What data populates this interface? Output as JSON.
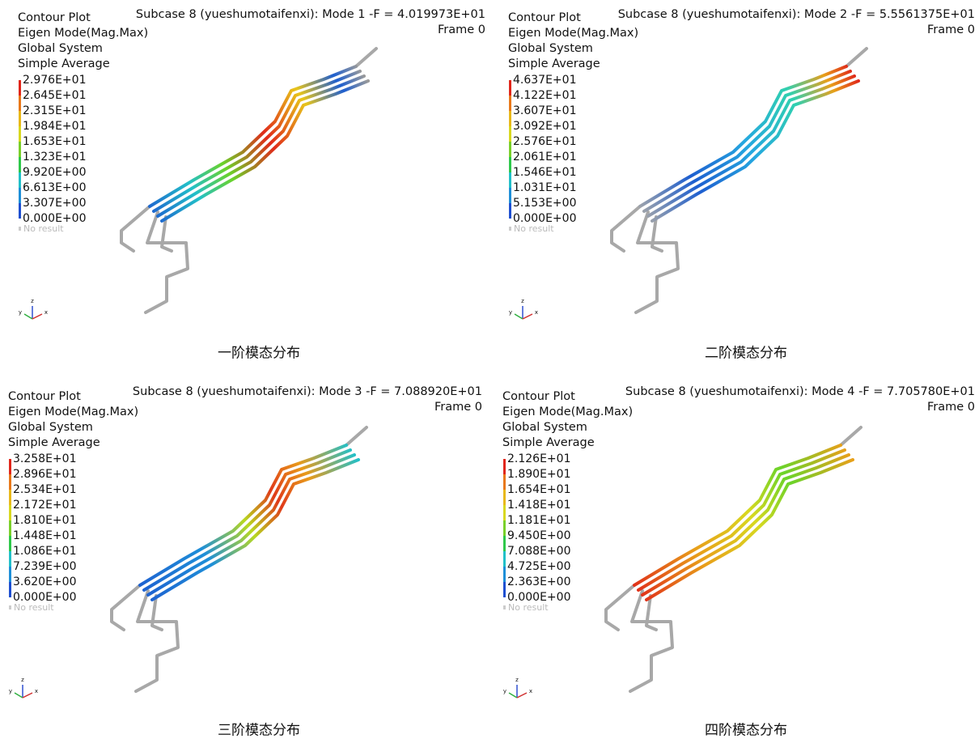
{
  "panels": [
    {
      "header": [
        "Contour Plot",
        "Eigen Mode(Mag.Max)",
        "Global System",
        "Simple Average"
      ],
      "title": "Subcase 8 (yueshumotaifenxi): Mode 1 -F = 4.019973E+01",
      "frame": "Frame 0",
      "legend": [
        "2.976E+01",
        "2.645E+01",
        "2.315E+01",
        "1.984E+01",
        "1.653E+01",
        "1.323E+01",
        "9.920E+00",
        "6.613E+00",
        "3.307E+00",
        "0.000E+00"
      ],
      "no_result": "No result",
      "axes": [
        "z",
        "y",
        "x"
      ],
      "caption": "一阶模态分布"
    },
    {
      "header": [
        "Contour Plot",
        "Eigen Mode(Mag.Max)",
        "Global System",
        "Simple Average"
      ],
      "title": "Subcase 8 (yueshumotaifenxi): Mode 2 -F = 5.5561375E+01",
      "frame": "Frame 0",
      "legend": [
        "4.637E+01",
        "4.122E+01",
        "3.607E+01",
        "3.092E+01",
        "2.576E+01",
        "2.061E+01",
        "1.546E+01",
        "1.031E+01",
        "5.153E+00",
        "0.000E+00"
      ],
      "no_result": "No result",
      "axes": [
        "z",
        "y",
        "x"
      ],
      "caption": "二阶模态分布"
    },
    {
      "header": [
        "Contour Plot",
        "Eigen Mode(Mag.Max)",
        "Global System",
        "Simple Average"
      ],
      "title": "Subcase 8 (yueshumotaifenxi): Mode 3 -F = 7.088920E+01",
      "frame": "Frame 0",
      "legend": [
        "3.258E+01",
        "2.896E+01",
        "2.534E+01",
        "2.172E+01",
        "1.810E+01",
        "1.448E+01",
        "1.086E+01",
        "7.239E+00",
        "3.620E+00",
        "0.000E+00"
      ],
      "no_result": "No result",
      "axes": [
        "z",
        "y",
        "x"
      ],
      "caption": "三阶模态分布"
    },
    {
      "header": [
        "Contour Plot",
        "Eigen Mode(Mag.Max)",
        "Global System",
        "Simple Average"
      ],
      "title": "Subcase 8 (yueshumotaifenxi): Mode 4 -F = 7.705780E+01",
      "frame": "Frame 0",
      "legend": [
        "2.126E+01",
        "1.890E+01",
        "1.654E+01",
        "1.418E+01",
        "1.181E+01",
        "9.450E+00",
        "7.088E+00",
        "4.725E+00",
        "2.363E+00",
        "0.000E+00"
      ],
      "no_result": "No result",
      "axes": [
        "z",
        "y",
        "x"
      ],
      "caption": "四阶模态分布"
    }
  ]
}
